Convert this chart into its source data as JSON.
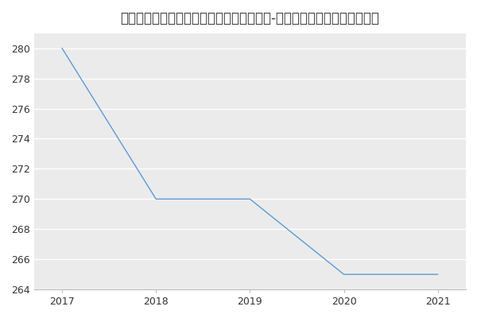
{
  "title": "空军工程大学信息与导航学院军事装备学（-历年复试）研究生录取分数线",
  "x": [
    2017,
    2018,
    2019,
    2020,
    2021
  ],
  "y": [
    280,
    270,
    270,
    265,
    265
  ],
  "line_color": "#5b9bd5",
  "plot_bg_color": "#ebebeb",
  "fig_bg_color": "#ffffff",
  "ylim": [
    264,
    281
  ],
  "xlim": [
    2016.7,
    2021.3
  ],
  "yticks": [
    264,
    266,
    268,
    270,
    272,
    274,
    276,
    278,
    280
  ],
  "xticks": [
    2017,
    2018,
    2019,
    2020,
    2021
  ],
  "grid_color": "#ffffff",
  "title_fontsize": 12,
  "tick_fontsize": 9,
  "line_width": 1.0
}
